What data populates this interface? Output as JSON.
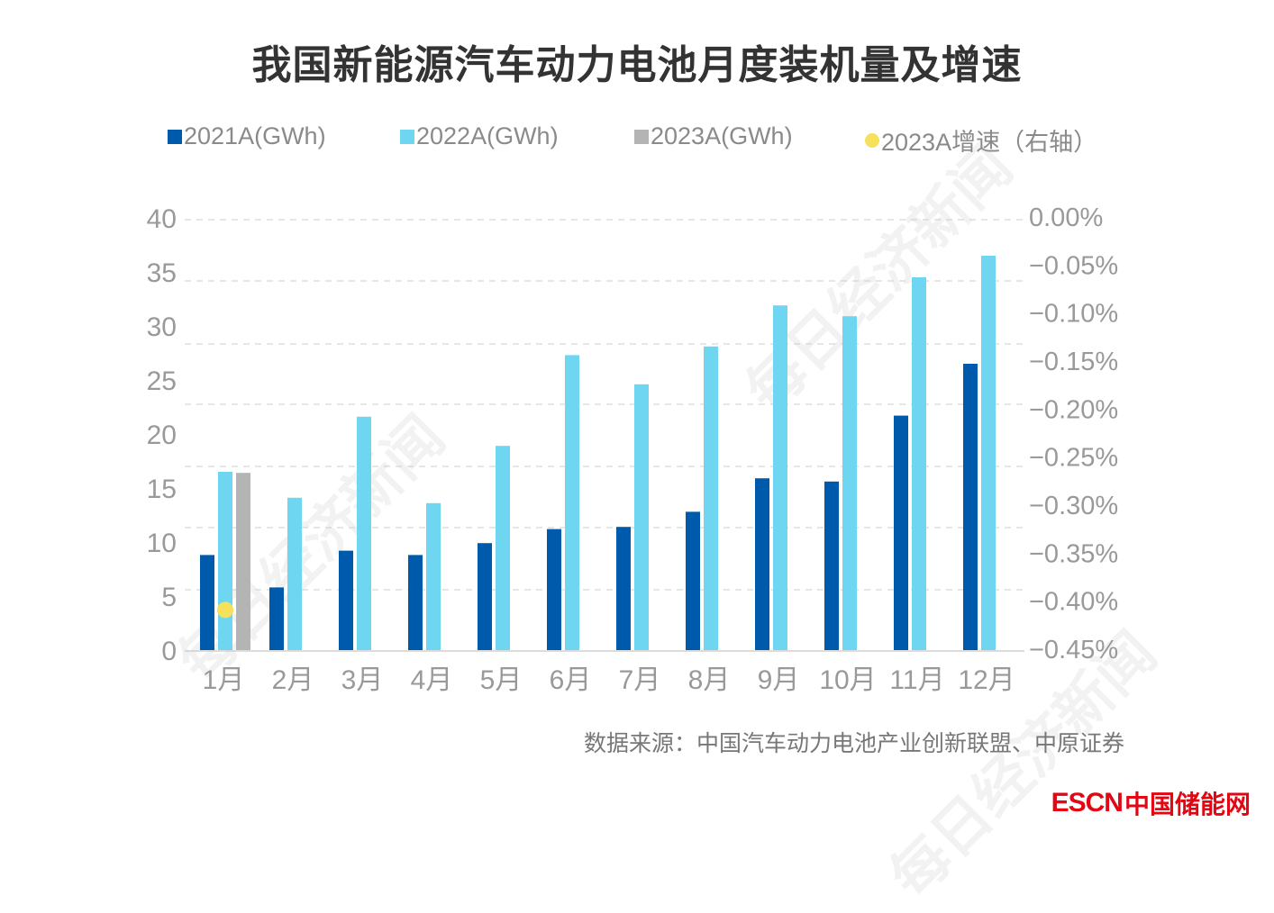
{
  "title": "我国新能源汽车动力电池月度装机量及增速",
  "legend": [
    {
      "label": "2021A(GWh)",
      "color": "#005aab",
      "shape": "square"
    },
    {
      "label": "2022A(GWh)",
      "color": "#6fd6f2",
      "shape": "square"
    },
    {
      "label": "2023A(GWh)",
      "color": "#b4b4b4",
      "shape": "square"
    },
    {
      "label": "2023A增速（右轴）",
      "color": "#f7e05a",
      "shape": "circle"
    }
  ],
  "source": "数据来源：中国汽车动力电池产业创新联盟、中原证券",
  "logo": {
    "en": "ESCN",
    "cn": "中国储能网"
  },
  "watermark": "每日经济新闻",
  "chart_data": {
    "type": "bar",
    "title": "我国新能源汽车动力电池月度装机量及增速",
    "xlabel": "",
    "ylabel": "",
    "categories": [
      "1月",
      "2月",
      "3月",
      "4月",
      "5月",
      "6月",
      "7月",
      "8月",
      "9月",
      "10月",
      "11月",
      "12月"
    ],
    "series": [
      {
        "name": "2021A(GWh)",
        "axis": "left",
        "color": "#005aab",
        "values": [
          8.8,
          5.8,
          9.2,
          8.8,
          9.9,
          11.2,
          11.4,
          12.8,
          15.9,
          15.6,
          21.7,
          26.5
        ]
      },
      {
        "name": "2022A(GWh)",
        "axis": "left",
        "color": "#6fd6f2",
        "values": [
          16.5,
          14.1,
          21.6,
          13.6,
          18.9,
          27.3,
          24.6,
          28.1,
          31.9,
          30.9,
          34.5,
          36.5
        ]
      },
      {
        "name": "2023A(GWh)",
        "axis": "left",
        "color": "#b4b4b4",
        "values": [
          16.4,
          null,
          null,
          null,
          null,
          null,
          null,
          null,
          null,
          null,
          null,
          null
        ]
      },
      {
        "name": "2023A增速（右轴）",
        "axis": "right",
        "type": "scatter",
        "color": "#f7e05a",
        "values": [
          -0.41,
          null,
          null,
          null,
          null,
          null,
          null,
          null,
          null,
          null,
          null,
          null
        ]
      }
    ],
    "y_left": {
      "ylim": [
        0,
        40
      ],
      "ticks": [
        "0",
        "5",
        "10",
        "15",
        "20",
        "25",
        "30",
        "35",
        "40"
      ]
    },
    "y_right": {
      "ylim": [
        -0.45,
        0.0
      ],
      "unit": "%",
      "ticks": [
        "−0.45%",
        "−0.40%",
        "−0.35%",
        "−0.30%",
        "−0.25%",
        "−0.20%",
        "−0.15%",
        "−0.10%",
        "−0.05%",
        "0.00%"
      ]
    },
    "grid": true,
    "legend_position": "top"
  }
}
